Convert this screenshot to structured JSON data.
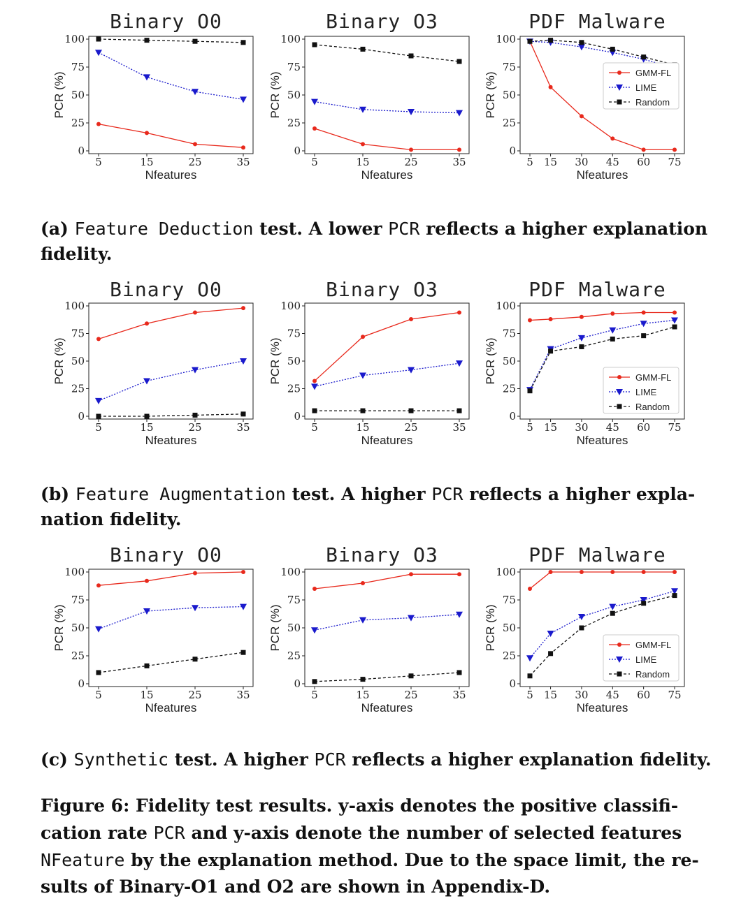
{
  "rows": [
    {
      "caption": {
        "label": "(a)",
        "code": "Feature Deduction",
        "text_1": "test. A lower",
        "code_2": "PCR",
        "text_2": "reflects a higher explanation fidelity."
      }
    },
    {
      "caption": {
        "label": "(b)",
        "code": "Feature Augmentation",
        "text_1": "test. A higher",
        "code_2": "PCR",
        "text_2": "reflects a higher expla-nation fidelity."
      }
    },
    {
      "caption": {
        "label": "(c)",
        "code": "Synthetic",
        "text_1": "test. A higher",
        "code_2": "PCR",
        "text_2": "reflects a higher explanation fidelity."
      }
    }
  ],
  "figure_caption": {
    "p1": "Figure 6: Fidelity test results. y-axis denotes the positive classifi-cation rate",
    "c1": "PCR",
    "p2": "and y-axis denote the number of selected features",
    "c2": "NFeature",
    "p3": "by the explanation method. Due to the space limit, the re-sults of Binary-O1 and O2 are shown in Appendix-D."
  },
  "colors": {
    "gmm": "#e8291c",
    "lime": "#1a1acc",
    "random": "#111111"
  },
  "chart_data": [
    {
      "type": "line",
      "title": "Binary O0",
      "xlabel": "Nfeatures",
      "ylabel": "PCR (%)",
      "x": [
        5,
        15,
        25,
        35
      ],
      "xticks": [
        5,
        15,
        25,
        35
      ],
      "xlim": [
        5,
        35
      ],
      "ylim": [
        0,
        100
      ],
      "yticks": [
        0,
        25,
        50,
        75,
        100
      ],
      "legend": false,
      "series": [
        {
          "name": "GMM-FL",
          "values": [
            24,
            16,
            6,
            3
          ]
        },
        {
          "name": "LIME",
          "values": [
            88,
            66,
            53,
            46
          ]
        },
        {
          "name": "Random",
          "values": [
            100,
            99,
            98,
            97
          ]
        }
      ]
    },
    {
      "type": "line",
      "title": "Binary O3",
      "xlabel": "Nfeatures",
      "ylabel": "PCR (%)",
      "x": [
        5,
        15,
        25,
        35
      ],
      "xticks": [
        5,
        15,
        25,
        35
      ],
      "xlim": [
        5,
        35
      ],
      "ylim": [
        0,
        100
      ],
      "yticks": [
        0,
        25,
        50,
        75,
        100
      ],
      "legend": false,
      "series": [
        {
          "name": "GMM-FL",
          "values": [
            20,
            6,
            1,
            1
          ]
        },
        {
          "name": "LIME",
          "values": [
            44,
            37,
            35,
            34
          ]
        },
        {
          "name": "Random",
          "values": [
            95,
            91,
            85,
            80
          ]
        }
      ]
    },
    {
      "type": "line",
      "title": "PDF Malware",
      "xlabel": "Nfeatures",
      "ylabel": "PCR (%)",
      "x": [
        5,
        15,
        30,
        45,
        60,
        75
      ],
      "xticks": [
        5,
        15,
        30,
        45,
        60,
        75
      ],
      "xlim": [
        5,
        75
      ],
      "ylim": [
        0,
        100
      ],
      "yticks": [
        0,
        25,
        50,
        75,
        100
      ],
      "legend": true,
      "legend_position": "center-right",
      "series": [
        {
          "name": "GMM-FL",
          "values": [
            98,
            57,
            31,
            11,
            1,
            1
          ]
        },
        {
          "name": "LIME",
          "values": [
            98,
            97,
            93,
            88,
            82,
            74
          ]
        },
        {
          "name": "Random",
          "values": [
            98,
            99,
            97,
            91,
            84,
            77
          ]
        }
      ]
    },
    {
      "type": "line",
      "title": "Binary O0",
      "xlabel": "Nfeatures",
      "ylabel": "PCR (%)",
      "x": [
        5,
        15,
        25,
        35
      ],
      "xticks": [
        5,
        15,
        25,
        35
      ],
      "xlim": [
        5,
        35
      ],
      "ylim": [
        0,
        100
      ],
      "yticks": [
        0,
        25,
        50,
        75,
        100
      ],
      "legend": false,
      "series": [
        {
          "name": "GMM-FL",
          "values": [
            70,
            84,
            94,
            98
          ]
        },
        {
          "name": "LIME",
          "values": [
            14,
            32,
            42,
            50
          ]
        },
        {
          "name": "Random",
          "values": [
            0,
            0,
            1,
            2
          ]
        }
      ]
    },
    {
      "type": "line",
      "title": "Binary O3",
      "xlabel": "Nfeatures",
      "ylabel": "PCR (%)",
      "x": [
        5,
        15,
        25,
        35
      ],
      "xticks": [
        5,
        15,
        25,
        35
      ],
      "xlim": [
        5,
        35
      ],
      "ylim": [
        0,
        100
      ],
      "yticks": [
        0,
        25,
        50,
        75,
        100
      ],
      "legend": false,
      "series": [
        {
          "name": "GMM-FL",
          "values": [
            32,
            72,
            88,
            94
          ]
        },
        {
          "name": "LIME",
          "values": [
            27,
            37,
            42,
            48
          ]
        },
        {
          "name": "Random",
          "values": [
            5,
            5,
            5,
            5
          ]
        }
      ]
    },
    {
      "type": "line",
      "title": "PDF Malware",
      "xlabel": "Nfeatures",
      "ylabel": "PCR (%)",
      "x": [
        5,
        15,
        30,
        45,
        60,
        75
      ],
      "xticks": [
        5,
        15,
        30,
        45,
        60,
        75
      ],
      "xlim": [
        5,
        75
      ],
      "ylim": [
        0,
        100
      ],
      "yticks": [
        0,
        25,
        50,
        75,
        100
      ],
      "legend": true,
      "legend_position": "lower-right",
      "series": [
        {
          "name": "GMM-FL",
          "values": [
            87,
            88,
            90,
            93,
            94,
            94
          ]
        },
        {
          "name": "LIME",
          "values": [
            24,
            61,
            71,
            78,
            84,
            87
          ]
        },
        {
          "name": "Random",
          "values": [
            23,
            59,
            63,
            70,
            73,
            81
          ]
        }
      ]
    },
    {
      "type": "line",
      "title": "Binary O0",
      "xlabel": "Nfeatures",
      "ylabel": "PCR (%)",
      "x": [
        5,
        15,
        25,
        35
      ],
      "xticks": [
        5,
        15,
        25,
        35
      ],
      "xlim": [
        5,
        35
      ],
      "ylim": [
        0,
        100
      ],
      "yticks": [
        0,
        25,
        50,
        75,
        100
      ],
      "legend": false,
      "series": [
        {
          "name": "GMM-FL",
          "values": [
            88,
            92,
            99,
            100
          ]
        },
        {
          "name": "LIME",
          "values": [
            49,
            65,
            68,
            69
          ]
        },
        {
          "name": "Random",
          "values": [
            10,
            16,
            22,
            28
          ]
        }
      ]
    },
    {
      "type": "line",
      "title": "Binary O3",
      "xlabel": "Nfeatures",
      "ylabel": "PCR (%)",
      "x": [
        5,
        15,
        25,
        35
      ],
      "xticks": [
        5,
        15,
        25,
        35
      ],
      "xlim": [
        5,
        35
      ],
      "ylim": [
        0,
        100
      ],
      "yticks": [
        0,
        25,
        50,
        75,
        100
      ],
      "legend": false,
      "series": [
        {
          "name": "GMM-FL",
          "values": [
            85,
            90,
            98,
            98
          ]
        },
        {
          "name": "LIME",
          "values": [
            48,
            57,
            59,
            62
          ]
        },
        {
          "name": "Random",
          "values": [
            2,
            4,
            7,
            10
          ]
        }
      ]
    },
    {
      "type": "line",
      "title": "PDF Malware",
      "xlabel": "Nfeatures",
      "ylabel": "PCR (%)",
      "x": [
        5,
        15,
        30,
        45,
        60,
        75
      ],
      "xticks": [
        5,
        15,
        30,
        45,
        60,
        75
      ],
      "xlim": [
        5,
        75
      ],
      "ylim": [
        0,
        100
      ],
      "yticks": [
        0,
        25,
        50,
        75,
        100
      ],
      "legend": true,
      "legend_position": "lower-right",
      "series": [
        {
          "name": "GMM-FL",
          "values": [
            85,
            100,
            100,
            100,
            100,
            100
          ]
        },
        {
          "name": "LIME",
          "values": [
            23,
            45,
            60,
            69,
            75,
            83
          ]
        },
        {
          "name": "Random",
          "values": [
            7,
            27,
            50,
            63,
            72,
            79
          ]
        }
      ]
    }
  ]
}
